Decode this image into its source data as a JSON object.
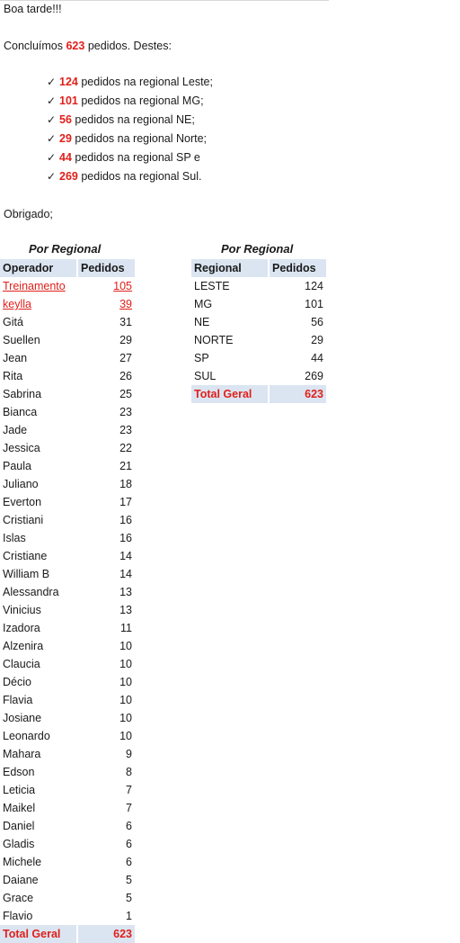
{
  "message": {
    "greeting": "Boa tarde!!!",
    "intro_prefix": "Concluímos",
    "intro_total": "623",
    "intro_suffix": "pedidos. Destes:",
    "bullets": [
      {
        "count": "124",
        "text": "pedidos na regional Leste;"
      },
      {
        "count": "101",
        "text": "pedidos na regional MG;"
      },
      {
        "count": "56",
        "text": "pedidos na regional NE;"
      },
      {
        "count": "29",
        "text": "pedidos na regional Norte;"
      },
      {
        "count": "44",
        "text": "pedidos na regional SP e"
      },
      {
        "count": "269",
        "text": "pedidos na regional Sul."
      }
    ],
    "closing": "Obrigado;"
  },
  "operator_table": {
    "caption": "Por Regional",
    "headers": [
      "Operador",
      "Pedidos"
    ],
    "rows": [
      {
        "name": "Treinamento",
        "value": "105",
        "highlight": true
      },
      {
        "name": "keylla",
        "value": "39",
        "highlight": true
      },
      {
        "name": "Gitá",
        "value": "31"
      },
      {
        "name": "Suellen",
        "value": "29"
      },
      {
        "name": "Jean",
        "value": "27"
      },
      {
        "name": "Rita",
        "value": "26"
      },
      {
        "name": "Sabrina",
        "value": "25"
      },
      {
        "name": "Bianca",
        "value": "23"
      },
      {
        "name": "Jade",
        "value": "23"
      },
      {
        "name": "Jessica",
        "value": "22"
      },
      {
        "name": "Paula",
        "value": "21"
      },
      {
        "name": "Juliano",
        "value": "18"
      },
      {
        "name": "Everton",
        "value": "17"
      },
      {
        "name": "Cristiani",
        "value": "16"
      },
      {
        "name": "Islas",
        "value": "16"
      },
      {
        "name": "Cristiane",
        "value": "14"
      },
      {
        "name": "William B",
        "value": "14"
      },
      {
        "name": "Alessandra",
        "value": "13"
      },
      {
        "name": "Vinicius",
        "value": "13"
      },
      {
        "name": "Izadora",
        "value": "11"
      },
      {
        "name": "Alzenira",
        "value": "10"
      },
      {
        "name": "Claucia",
        "value": "10"
      },
      {
        "name": "Décio",
        "value": "10"
      },
      {
        "name": "Flavia",
        "value": "10"
      },
      {
        "name": "Josiane",
        "value": "10"
      },
      {
        "name": "Leonardo",
        "value": "10"
      },
      {
        "name": "Mahara",
        "value": "9"
      },
      {
        "name": "Edson",
        "value": "8"
      },
      {
        "name": "Leticia",
        "value": "7"
      },
      {
        "name": "Maikel",
        "value": "7"
      },
      {
        "name": "Daniel",
        "value": "6"
      },
      {
        "name": "Gladis",
        "value": "6"
      },
      {
        "name": "Michele",
        "value": "6"
      },
      {
        "name": "Daiane",
        "value": "5"
      },
      {
        "name": "Grace",
        "value": "5"
      },
      {
        "name": "Flavio",
        "value": "1"
      }
    ],
    "total_label": "Total Geral",
    "total_value": "623"
  },
  "region_table": {
    "caption": "Por Regional",
    "headers": [
      "Regional",
      "Pedidos"
    ],
    "rows": [
      {
        "name": "LESTE",
        "value": "124"
      },
      {
        "name": "MG",
        "value": "101"
      },
      {
        "name": "NE",
        "value": "56"
      },
      {
        "name": "NORTE",
        "value": "29"
      },
      {
        "name": "SP",
        "value": "44"
      },
      {
        "name": "SUL",
        "value": "269"
      }
    ],
    "total_label": "Total Geral",
    "total_value": "623"
  },
  "colors": {
    "accent_red": "#e0201b",
    "header_blue": "#dbe5f1"
  }
}
